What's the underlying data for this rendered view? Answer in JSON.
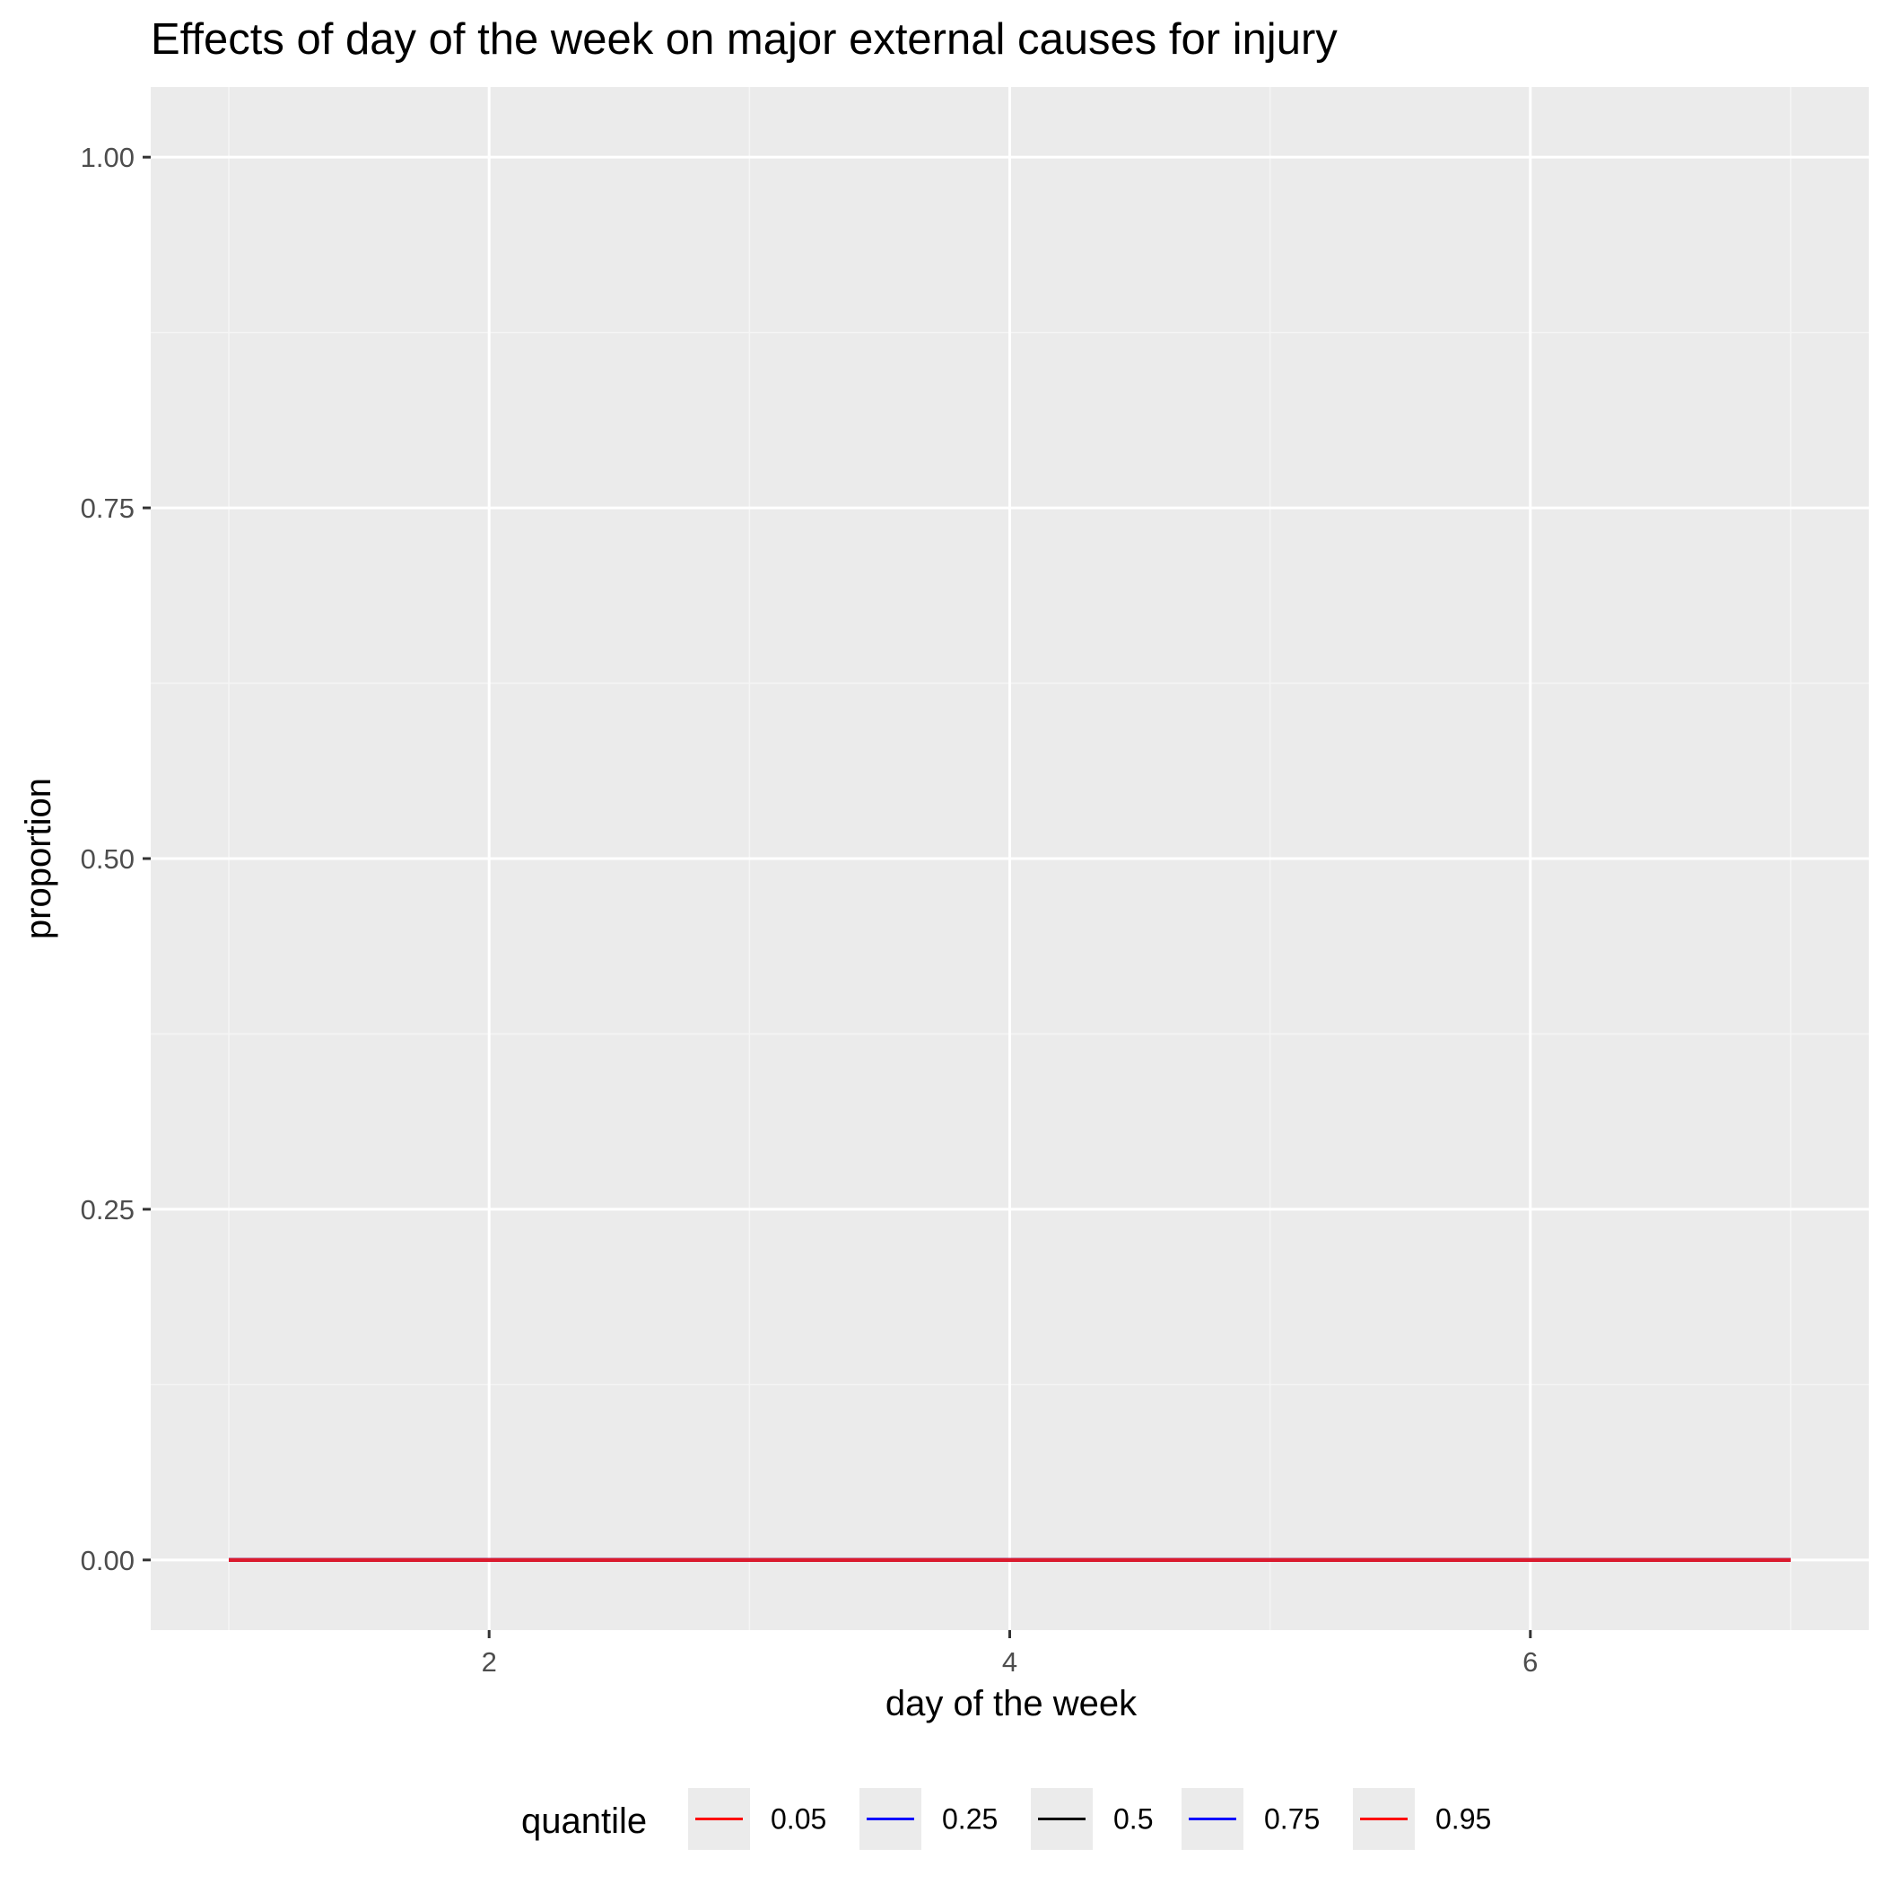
{
  "chart_data": {
    "type": "line",
    "title": "Effects of day of the week on major external causes for injury",
    "xlabel": "day of the week",
    "ylabel": "proportion",
    "xlim": [
      0.7,
      7.3
    ],
    "ylim": [
      -0.05,
      1.05
    ],
    "x_ticks": [
      2,
      4,
      6
    ],
    "x_tick_labels": [
      "2",
      "4",
      "6"
    ],
    "y_ticks": [
      0,
      0.25,
      0.5,
      0.75,
      1.0
    ],
    "y_tick_labels": [
      "0.00",
      "0.25",
      "0.50",
      "0.75",
      "1.00"
    ],
    "grid": true,
    "legend": {
      "title": "quantile",
      "position": "bottom"
    },
    "x": [
      1,
      2,
      3,
      4,
      5,
      6,
      7
    ],
    "series": [
      {
        "name": "0.05",
        "color": "#ff0000",
        "values": [
          0,
          0,
          0,
          0,
          0,
          0,
          0
        ]
      },
      {
        "name": "0.25",
        "color": "#0000ff",
        "values": [
          0,
          0,
          0,
          0,
          0,
          0,
          0
        ]
      },
      {
        "name": "0.5",
        "color": "#000000",
        "values": [
          0,
          0,
          0,
          0,
          0,
          0,
          0
        ]
      },
      {
        "name": "0.75",
        "color": "#0000ff",
        "values": [
          0,
          0,
          0,
          0,
          0,
          0,
          0
        ]
      },
      {
        "name": "0.95",
        "color": "#ff0000",
        "values": [
          0,
          0,
          0,
          0,
          0,
          0,
          0
        ]
      }
    ],
    "colors": {
      "panel_background": "#ebebeb",
      "grid_major": "#ffffff",
      "grid_minor": "#f5f5f5",
      "visible_line": "#dc1a2c"
    }
  }
}
